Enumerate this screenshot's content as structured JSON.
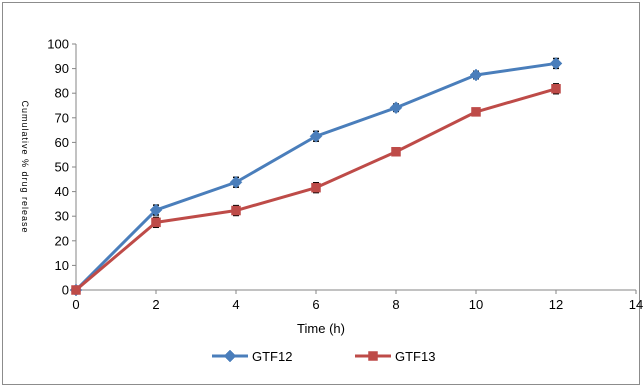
{
  "chart_data": {
    "type": "line",
    "title": "",
    "xlabel": "Time (h)",
    "ylabel": "Cumulative % drug release",
    "x": [
      0,
      2,
      4,
      6,
      8,
      10,
      12
    ],
    "xlim": [
      0,
      14
    ],
    "xticks": [
      0,
      2,
      4,
      6,
      8,
      10,
      12,
      14
    ],
    "ylim": [
      0,
      100
    ],
    "yticks": [
      0,
      10,
      20,
      30,
      40,
      50,
      60,
      70,
      80,
      90,
      100
    ],
    "grid": false,
    "legend_position": "bottom",
    "series": [
      {
        "name": "GTF12",
        "color": "#4a7ebb",
        "marker": "diamond",
        "values": [
          0,
          32.5,
          43.8,
          62.5,
          74.1,
          87.4,
          92.1
        ],
        "errors": [
          0,
          2,
          2,
          2,
          1.5,
          1.5,
          2
        ]
      },
      {
        "name": "GTF13",
        "color": "#be4b48",
        "marker": "square",
        "values": [
          0,
          27.5,
          32.3,
          41.6,
          56.2,
          72.4,
          81.8
        ],
        "errors": [
          0,
          2,
          2,
          2,
          1,
          1,
          2
        ]
      }
    ]
  }
}
